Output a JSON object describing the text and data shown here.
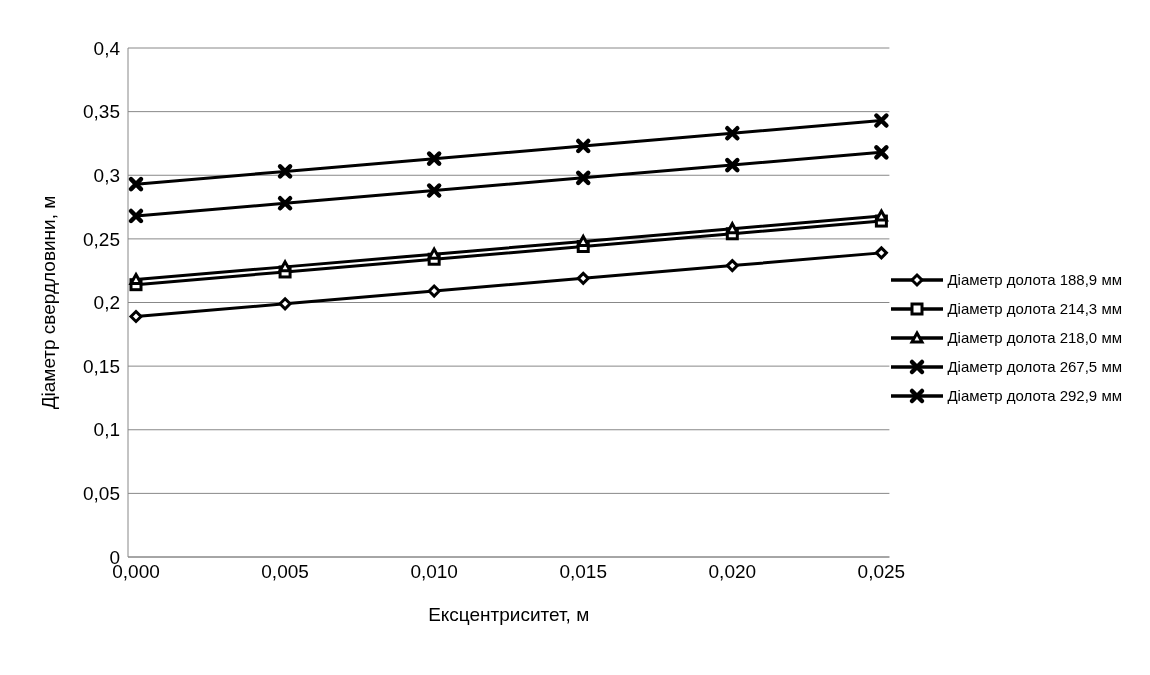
{
  "chart_data": {
    "type": "line",
    "xlabel": "Ексцентриситет, м",
    "ylabel": "Діаметр свердловини, м",
    "categories": [
      "0,000",
      "0,005",
      "0,010",
      "0,015",
      "0,020",
      "0,025"
    ],
    "series": [
      {
        "name": "Діаметр долота 188,9 мм",
        "color": "#000000",
        "marker": "diamond",
        "values": [
          0.189,
          0.199,
          0.209,
          0.219,
          0.229,
          0.239
        ]
      },
      {
        "name": "Діаметр долота 214,3 мм",
        "color": "#000000",
        "marker": "square",
        "values": [
          0.214,
          0.224,
          0.234,
          0.244,
          0.254,
          0.264
        ]
      },
      {
        "name": "Діаметр долота 218,0 мм",
        "color": "#000000",
        "marker": "triangle",
        "values": [
          0.218,
          0.228,
          0.238,
          0.248,
          0.258,
          0.268
        ]
      },
      {
        "name": "Діаметр долота 267,5 мм",
        "color": "#000000",
        "marker": "cross",
        "values": [
          0.268,
          0.278,
          0.288,
          0.298,
          0.308,
          0.318
        ]
      },
      {
        "name": "Діаметр долота 292,9 мм",
        "color": "#000000",
        "marker": "cross",
        "values": [
          0.293,
          0.303,
          0.313,
          0.323,
          0.333,
          0.343
        ]
      }
    ],
    "ylim": [
      0,
      0.4
    ],
    "yticks": [
      0,
      {
        "value": 0.05,
        "label": "0,05"
      },
      {
        "value": 0.1,
        "label": "0,1"
      },
      {
        "value": 0.15,
        "label": "0,15"
      },
      {
        "value": 0.2,
        "label": "0,2"
      },
      {
        "value": 0.25,
        "label": "0,25"
      },
      {
        "value": 0.3,
        "label": "0,3"
      },
      {
        "value": 0.35,
        "label": "0,35"
      },
      {
        "value": 0.4,
        "label": "0,4"
      }
    ],
    "grid": "y",
    "legend": "right",
    "line_style": "solid"
  }
}
